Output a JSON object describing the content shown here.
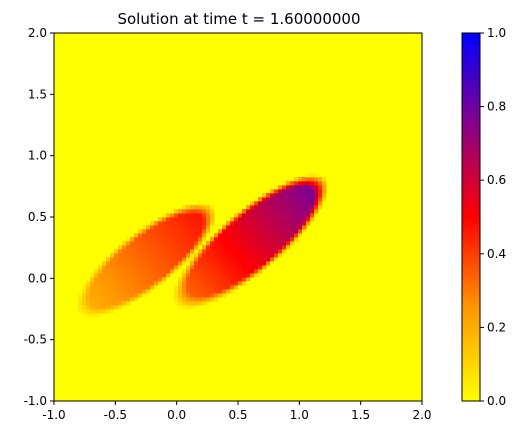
{
  "chart_data": {
    "type": "heatmap",
    "title": "Solution at time t =     1.60000000",
    "xlabel": "",
    "ylabel": "",
    "xlim": [
      -1.0,
      2.0
    ],
    "ylim": [
      -1.0,
      2.0
    ],
    "x_ticks": [
      "-1.0",
      "-0.5",
      "0.0",
      "0.5",
      "1.0",
      "1.5",
      "2.0"
    ],
    "y_ticks": [
      "-1.0",
      "-0.5",
      "0.0",
      "0.5",
      "1.0",
      "1.5",
      "2.0"
    ],
    "grid": false,
    "colormap": {
      "stops": [
        {
          "value": 0.0,
          "color": "#ffff00"
        },
        {
          "value": 0.25,
          "color": "#ff9900"
        },
        {
          "value": 0.5,
          "color": "#ff0000"
        },
        {
          "value": 0.75,
          "color": "#880088"
        },
        {
          "value": 1.0,
          "color": "#0000ff"
        }
      ],
      "ticks": [
        "0.0",
        "0.2",
        "0.4",
        "0.6",
        "0.8",
        "1.0"
      ],
      "range": [
        0.0,
        1.0
      ]
    },
    "blobs": [
      {
        "name": "left-blob",
        "center": [
          -0.25,
          0.15
        ],
        "semi_axes": [
          0.7,
          0.23
        ],
        "angle_deg": 38,
        "peak": 0.5
      },
      {
        "name": "right-blob",
        "center": [
          0.6,
          0.3
        ],
        "semi_axes": [
          0.8,
          0.25
        ],
        "angle_deg": 40,
        "peak": 0.82
      }
    ]
  }
}
